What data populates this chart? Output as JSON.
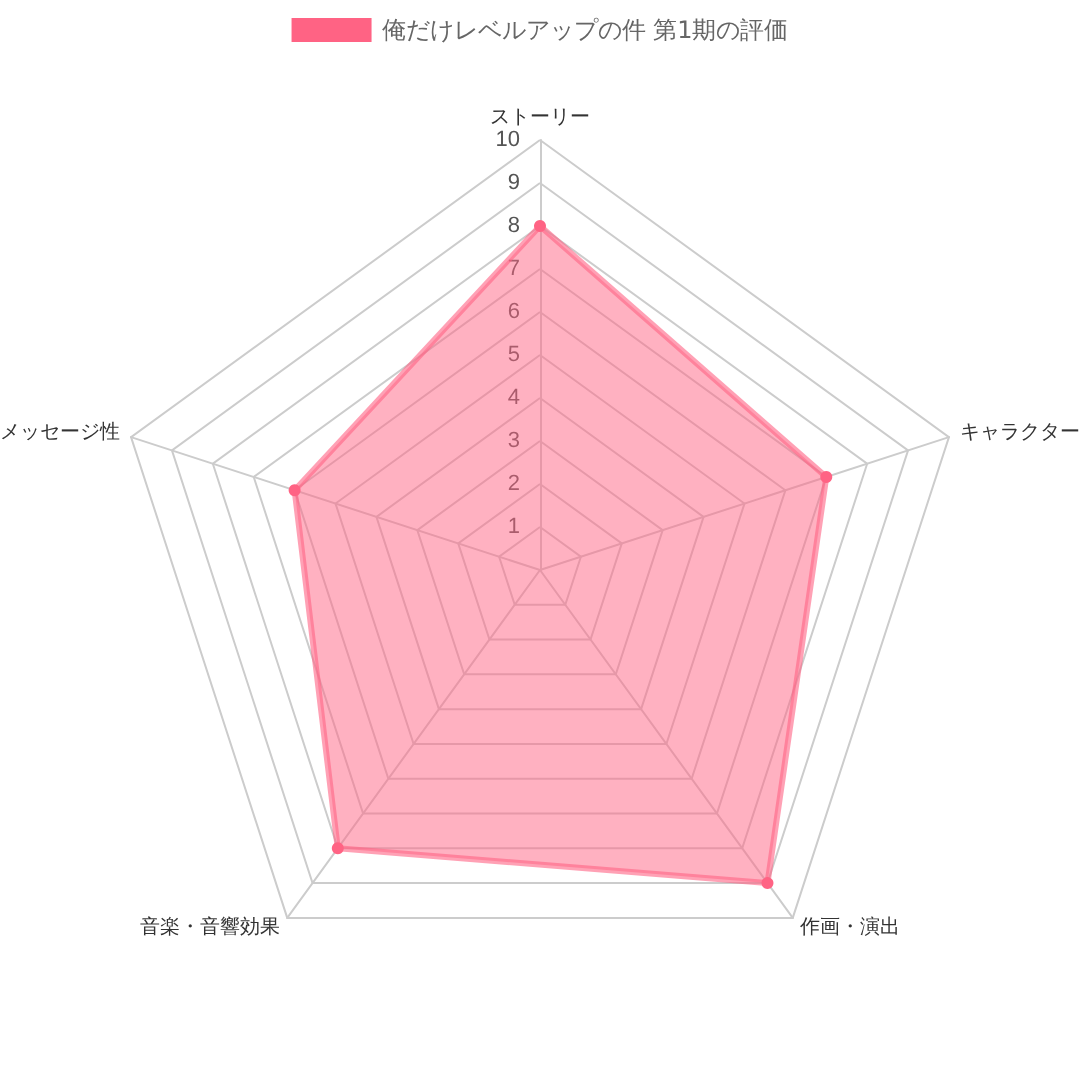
{
  "chart_data": {
    "type": "radar",
    "categories": [
      "ストーリー",
      "キャラクター",
      "作画・演出",
      "音楽・音響効果",
      "メッセージ性"
    ],
    "series": [
      {
        "name": "俺だけレベルアップの件 第1期の評価",
        "color": "#ff6384",
        "values": [
          8,
          7,
          9,
          8,
          6
        ]
      }
    ],
    "ylim": [
      0,
      10
    ],
    "yticks": [
      1,
      2,
      3,
      4,
      5,
      6,
      7,
      8,
      9,
      10
    ],
    "legend": "top",
    "marker": "circle",
    "grid": true
  }
}
